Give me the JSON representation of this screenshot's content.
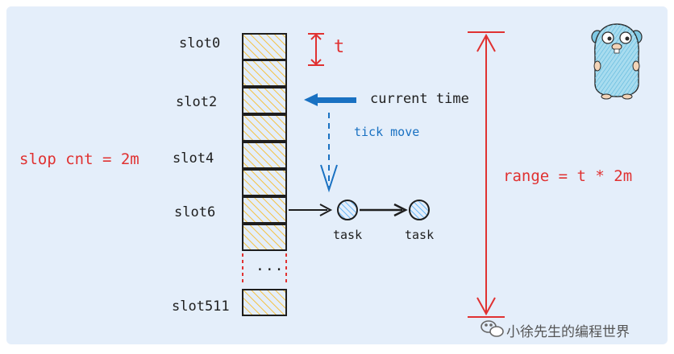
{
  "slots": {
    "labels": [
      "slot0",
      "slot2",
      "slot4",
      "slot6",
      "slot511"
    ],
    "ellipsis": "..."
  },
  "annotations": {
    "tick_unit": "t",
    "current_time": "current time",
    "tick_move": "tick move",
    "slot_count": "slop cnt = 2m",
    "range": "range = t * 2m"
  },
  "tasks": [
    "task",
    "task"
  ],
  "watermark": "小徐先生的编程世界",
  "colors": {
    "background": "#e4eefa",
    "slot_fill": "#f5c242",
    "accent_red": "#e03131",
    "accent_blue": "#1971c2",
    "task_fill": "#4dabf7",
    "gopher": "#7ec8e3"
  },
  "icons": {
    "mascot": "gopher-icon",
    "wechat": "wechat-icon"
  }
}
